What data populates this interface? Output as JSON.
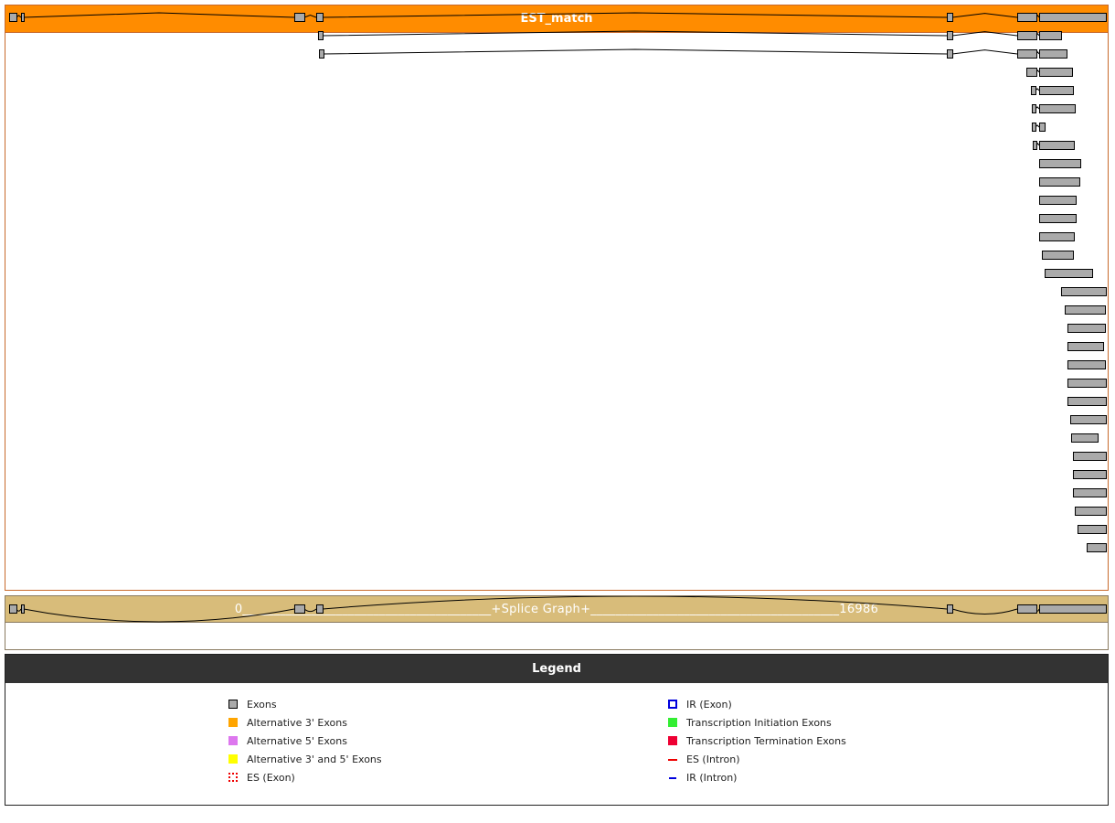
{
  "est_panel": {
    "title": "EST_match",
    "header_color": "#ff8c00",
    "exon_color": "#aaaaaa",
    "tracks": [
      [
        [
          0,
          113
        ],
        [
          184,
          226
        ],
        [
          4416,
          4572
        ],
        [
          4756,
          4855
        ],
        [
          14523,
          14608
        ],
        [
          15613,
          15910
        ],
        [
          15953,
          16986
        ]
      ],
      [
        [
          4784,
          4855
        ],
        [
          14523,
          14608
        ],
        [
          15613,
          15910
        ],
        [
          15953,
          16292
        ]
      ],
      [
        [
          4799,
          4869
        ],
        [
          14523,
          14608
        ],
        [
          15613,
          15910
        ],
        [
          15953,
          16377
        ]
      ],
      [
        [
          15755,
          15910
        ],
        [
          15953,
          16462
        ]
      ],
      [
        [
          15825,
          15896
        ],
        [
          15953,
          16476
        ]
      ],
      [
        [
          15839,
          15896
        ],
        [
          15953,
          16505
        ]
      ],
      [
        [
          15839,
          15896
        ],
        [
          15953,
          16038
        ]
      ],
      [
        [
          15854,
          15910
        ],
        [
          15953,
          16490
        ]
      ],
      [
        [
          15953,
          16590
        ]
      ],
      [
        [
          15953,
          16575
        ]
      ],
      [
        [
          15953,
          16519
        ]
      ],
      [
        [
          15953,
          16519
        ]
      ],
      [
        [
          15953,
          16490
        ]
      ],
      [
        [
          15995,
          16476
        ]
      ],
      [
        [
          16038,
          16774
        ]
      ],
      [
        [
          16292,
          16986
        ]
      ],
      [
        [
          16349,
          16972
        ]
      ],
      [
        [
          16391,
          16972
        ]
      ],
      [
        [
          16391,
          16944
        ]
      ],
      [
        [
          16391,
          16972
        ]
      ],
      [
        [
          16391,
          16986
        ]
      ],
      [
        [
          16391,
          16986
        ]
      ],
      [
        [
          16434,
          16986
        ]
      ],
      [
        [
          16448,
          16859
        ]
      ],
      [
        [
          16476,
          16986
        ]
      ],
      [
        [
          16476,
          16986
        ]
      ],
      [
        [
          16476,
          16986
        ]
      ],
      [
        [
          16505,
          16986
        ]
      ],
      [
        [
          16547,
          16986
        ]
      ],
      [
        [
          16689,
          16986
        ]
      ]
    ]
  },
  "splice_graph": {
    "title": "0________________________________________+Splice Graph+________________________________________16986",
    "range": [
      0,
      16986
    ],
    "header_color": "#d8bc7a",
    "exons": [
      [
        0,
        113
      ],
      [
        184,
        226
      ],
      [
        4416,
        4572
      ],
      [
        4756,
        4855
      ],
      [
        14523,
        14608
      ],
      [
        15613,
        15910
      ],
      [
        15953,
        16986
      ]
    ]
  },
  "legend": {
    "title": "Legend",
    "items": [
      {
        "label": "Exons",
        "icon": "gray-square",
        "color": "#aaaaaa"
      },
      {
        "label": "Alternative 3' Exons",
        "icon": "orange-square",
        "color": "#ffa500"
      },
      {
        "label": "Alternative 5' Exons",
        "icon": "violet-square",
        "color": "#dd77ee"
      },
      {
        "label": "Alternative 3' and 5' Exons",
        "icon": "yellow-square",
        "color": "#ffff00"
      },
      {
        "label": "ES (Exon)",
        "icon": "red-dashed-square",
        "color": "#ee0000"
      },
      {
        "label": "IR (Exon)",
        "icon": "blue-outline-square",
        "color": "#0000dd"
      },
      {
        "label": "Transcription Initiation Exons",
        "icon": "green-square",
        "color": "#33ee33"
      },
      {
        "label": "Transcription Termination Exons",
        "icon": "red-square",
        "color": "#ee0033"
      },
      {
        "label": "ES (Intron)",
        "icon": "red-dashed-line",
        "color": "#ee0000"
      },
      {
        "label": "IR (Intron)",
        "icon": "blue-line",
        "color": "#0000dd"
      }
    ]
  }
}
